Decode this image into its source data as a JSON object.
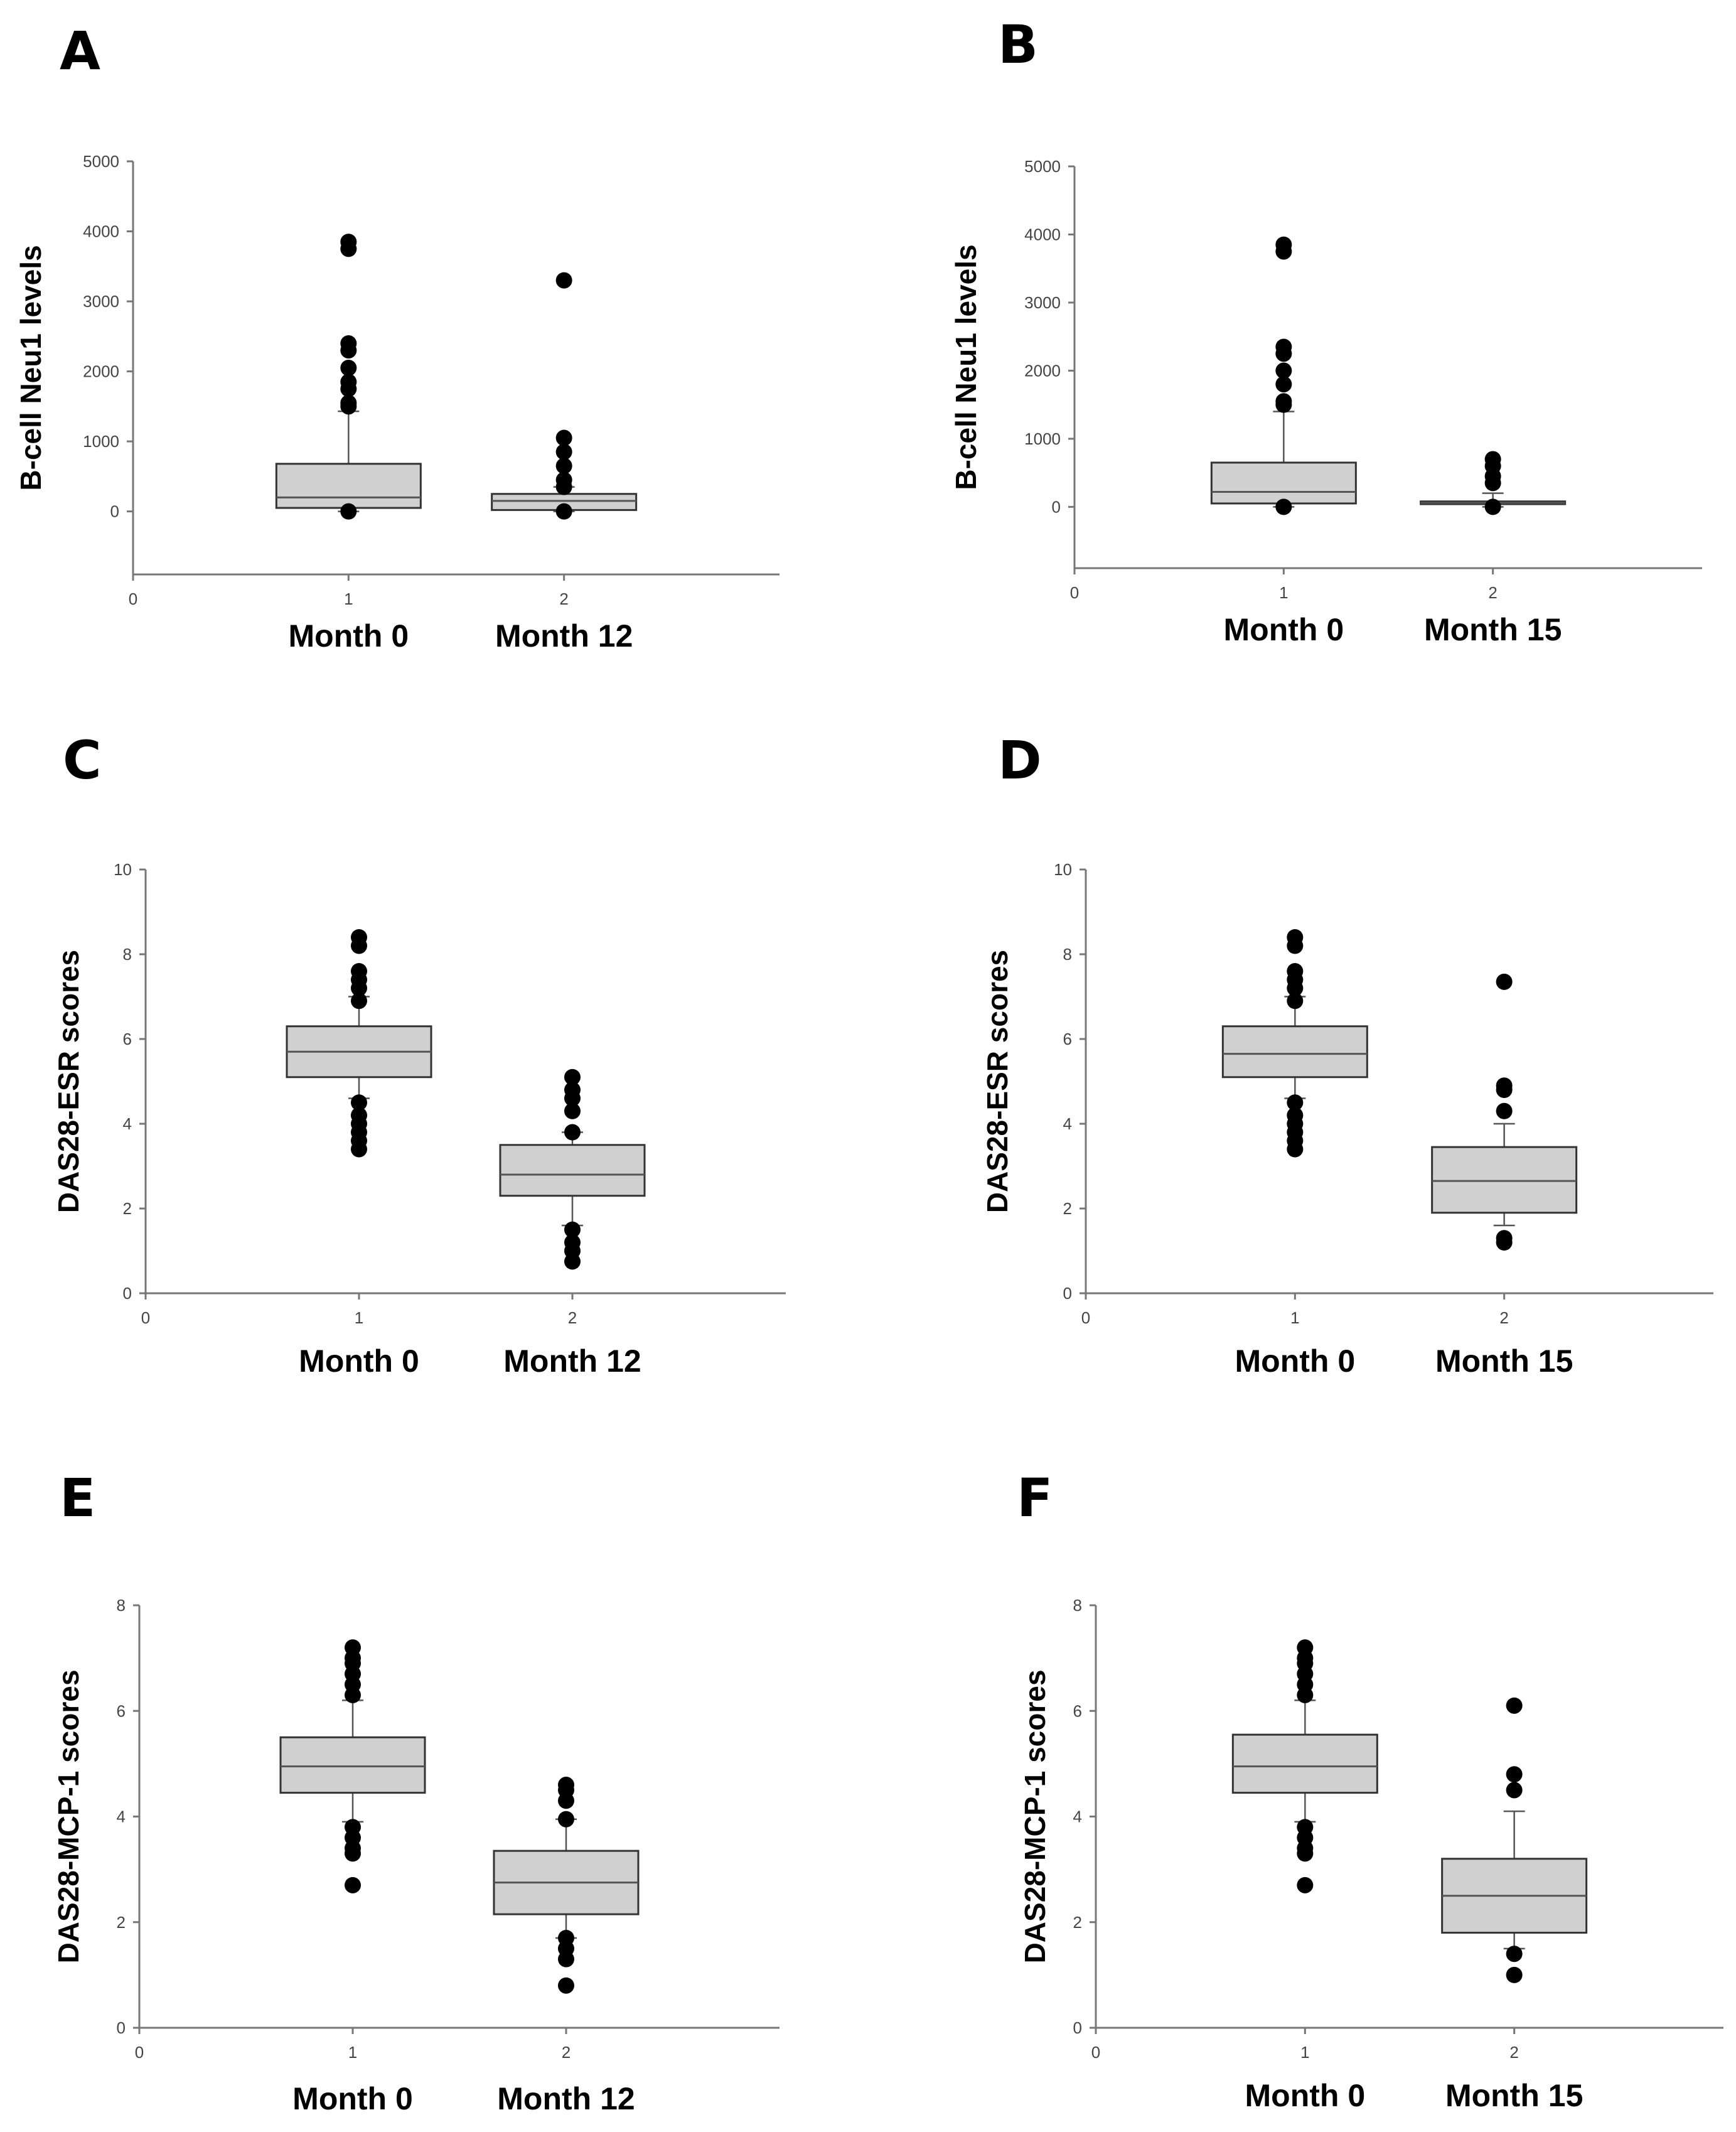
{
  "chart_data": [
    {
      "panel": "A",
      "type": "box",
      "ylabel": "B-cell Neu1 levels",
      "ylim": [
        -900,
        5000
      ],
      "yticks": [
        0,
        1000,
        2000,
        3000,
        4000,
        5000
      ],
      "xlim": [
        0,
        3
      ],
      "xticks": [
        0,
        1,
        2
      ],
      "group_labels": [
        "Month 0",
        "Month 12"
      ],
      "groups": [
        {
          "x": 1,
          "q1": 50,
          "median": 200,
          "q3": 680,
          "whisker_low": 0,
          "whisker_high": 1430,
          "outliers": [
            1500,
            1550,
            1750,
            1850,
            2050,
            2300,
            2400,
            3750,
            3850,
            0
          ]
        },
        {
          "x": 2,
          "q1": 20,
          "median": 150,
          "q3": 250,
          "whisker_low": 0,
          "whisker_high": 350,
          "outliers": [
            350,
            450,
            650,
            850,
            1050,
            3300,
            0
          ]
        }
      ]
    },
    {
      "panel": "B",
      "type": "box",
      "ylabel": "B-cell Neu1 levels",
      "ylim": [
        -900,
        5000
      ],
      "yticks": [
        0,
        1000,
        2000,
        3000,
        4000,
        5000
      ],
      "xlim": [
        0,
        3
      ],
      "xticks": [
        0,
        1,
        2
      ],
      "group_labels": [
        "Month 0",
        "Month 15"
      ],
      "groups": [
        {
          "x": 1,
          "q1": 50,
          "median": 220,
          "q3": 650,
          "whisker_low": 0,
          "whisker_high": 1400,
          "outliers": [
            1500,
            1550,
            1800,
            2000,
            2250,
            2350,
            3750,
            3850,
            0
          ]
        },
        {
          "x": 2,
          "q1": 40,
          "median": 60,
          "q3": 80,
          "whisker_low": 0,
          "whisker_high": 200,
          "outliers": [
            350,
            450,
            600,
            700,
            0
          ]
        }
      ]
    },
    {
      "panel": "C",
      "type": "box",
      "ylabel": "DAS28-ESR scores",
      "ylim": [
        0,
        10
      ],
      "yticks": [
        0,
        2,
        4,
        6,
        8,
        10
      ],
      "xlim": [
        0,
        3
      ],
      "xticks": [
        0,
        1,
        2
      ],
      "group_labels": [
        "Month 0",
        "Month 12"
      ],
      "groups": [
        {
          "x": 1,
          "q1": 5.1,
          "median": 5.7,
          "q3": 6.3,
          "whisker_low": 4.6,
          "whisker_high": 7.0,
          "outliers": [
            3.4,
            3.6,
            3.8,
            4.0,
            4.2,
            4.5,
            6.9,
            7.2,
            7.4,
            7.6,
            8.2,
            8.4
          ]
        },
        {
          "x": 2,
          "q1": 2.3,
          "median": 2.8,
          "q3": 3.5,
          "whisker_low": 1.6,
          "whisker_high": 3.8,
          "outliers": [
            0.75,
            1.0,
            1.2,
            1.5,
            3.8,
            4.3,
            4.6,
            4.8,
            5.1
          ]
        }
      ]
    },
    {
      "panel": "D",
      "type": "box",
      "ylabel": "DAS28-ESR scores",
      "ylim": [
        0,
        10
      ],
      "yticks": [
        0,
        2,
        4,
        6,
        8,
        10
      ],
      "xlim": [
        0,
        3
      ],
      "xticks": [
        0,
        1,
        2
      ],
      "group_labels": [
        "Month 0",
        "Month 15"
      ],
      "groups": [
        {
          "x": 1,
          "q1": 5.1,
          "median": 5.65,
          "q3": 6.3,
          "whisker_low": 4.6,
          "whisker_high": 7.0,
          "outliers": [
            3.4,
            3.6,
            3.8,
            4.0,
            4.2,
            4.5,
            6.9,
            7.2,
            7.4,
            7.6,
            8.2,
            8.4
          ]
        },
        {
          "x": 2,
          "q1": 1.9,
          "median": 2.65,
          "q3": 3.45,
          "whisker_low": 1.6,
          "whisker_high": 4.0,
          "outliers": [
            1.2,
            1.3,
            4.3,
            4.8,
            4.9,
            7.35
          ]
        }
      ]
    },
    {
      "panel": "E",
      "type": "box",
      "ylabel": "DAS28-MCP-1 scores",
      "ylim": [
        0,
        8
      ],
      "yticks": [
        0,
        2,
        4,
        6,
        8
      ],
      "xlim": [
        0,
        3
      ],
      "xticks": [
        0,
        1,
        2
      ],
      "group_labels": [
        "Month 0",
        "Month 12"
      ],
      "groups": [
        {
          "x": 1,
          "q1": 4.45,
          "median": 4.95,
          "q3": 5.5,
          "whisker_low": 3.9,
          "whisker_high": 6.2,
          "outliers": [
            2.7,
            3.3,
            3.4,
            3.6,
            3.8,
            6.3,
            6.5,
            6.7,
            6.9,
            7.0,
            7.2
          ]
        },
        {
          "x": 2,
          "q1": 2.15,
          "median": 2.75,
          "q3": 3.35,
          "whisker_low": 1.7,
          "whisker_high": 3.95,
          "outliers": [
            0.8,
            1.3,
            1.5,
            1.7,
            3.95,
            4.3,
            4.5,
            4.6
          ]
        }
      ]
    },
    {
      "panel": "F",
      "type": "box",
      "ylabel": "DAS28-MCP-1 scores",
      "ylim": [
        0,
        8
      ],
      "yticks": [
        0,
        2,
        4,
        6,
        8
      ],
      "xlim": [
        0,
        3
      ],
      "xticks": [
        0,
        1,
        2
      ],
      "group_labels": [
        "Month 0",
        "Month 15"
      ],
      "groups": [
        {
          "x": 1,
          "q1": 4.45,
          "median": 4.95,
          "q3": 5.55,
          "whisker_low": 3.9,
          "whisker_high": 6.2,
          "outliers": [
            2.7,
            3.3,
            3.4,
            3.6,
            3.8,
            6.3,
            6.5,
            6.7,
            6.9,
            7.0,
            7.2
          ]
        },
        {
          "x": 2,
          "q1": 1.8,
          "median": 2.5,
          "q3": 3.2,
          "whisker_low": 1.5,
          "whisker_high": 4.1,
          "outliers": [
            1.0,
            1.4,
            4.5,
            4.8,
            6.1
          ]
        }
      ]
    }
  ]
}
